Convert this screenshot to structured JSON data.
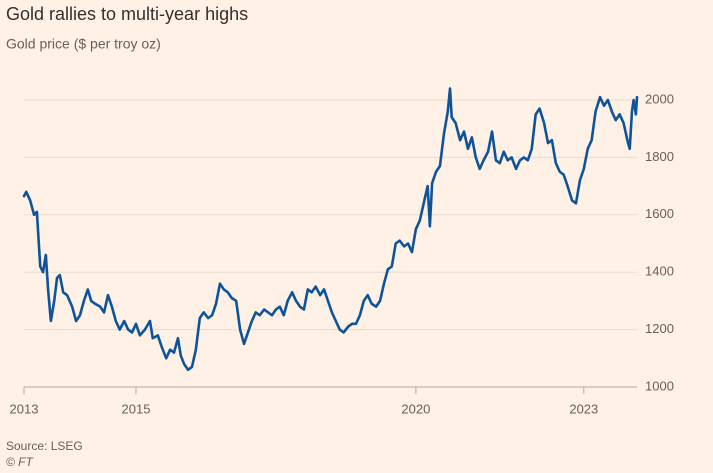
{
  "chart_data": {
    "type": "line",
    "title": "Gold rallies to multi-year highs",
    "subtitle": "Gold price ($ per troy oz)",
    "source": "Source: LSEG",
    "credit": "© FT",
    "x": [
      2013.0,
      2013.04,
      2013.11,
      2013.18,
      2013.23,
      2013.29,
      2013.34,
      2013.39,
      2013.43,
      2013.48,
      2013.54,
      2013.59,
      2013.64,
      2013.7,
      2013.77,
      2013.86,
      2013.93,
      2014.0,
      2014.07,
      2014.14,
      2014.2,
      2014.27,
      2014.36,
      2014.43,
      2014.5,
      2014.57,
      2014.64,
      2014.71,
      2014.79,
      2014.86,
      2014.93,
      2015.0,
      2015.07,
      2015.16,
      2015.25,
      2015.3,
      2015.39,
      2015.46,
      2015.54,
      2015.61,
      2015.68,
      2015.75,
      2015.8,
      2015.86,
      2015.93,
      2016.0,
      2016.07,
      2016.14,
      2016.21,
      2016.29,
      2016.36,
      2016.43,
      2016.5,
      2016.57,
      2016.64,
      2016.71,
      2016.79,
      2016.86,
      2016.93,
      2017.0,
      2017.07,
      2017.14,
      2017.21,
      2017.29,
      2017.36,
      2017.43,
      2017.5,
      2017.57,
      2017.64,
      2017.71,
      2017.79,
      2017.86,
      2017.93,
      2018.0,
      2018.07,
      2018.14,
      2018.21,
      2018.29,
      2018.36,
      2018.43,
      2018.5,
      2018.57,
      2018.64,
      2018.71,
      2018.79,
      2018.86,
      2018.93,
      2019.0,
      2019.07,
      2019.14,
      2019.21,
      2019.29,
      2019.36,
      2019.43,
      2019.5,
      2019.57,
      2019.64,
      2019.71,
      2019.79,
      2019.86,
      2019.93,
      2020.0,
      2020.07,
      2020.14,
      2020.21,
      2020.25,
      2020.29,
      2020.36,
      2020.43,
      2020.5,
      2020.57,
      2020.61,
      2020.64,
      2020.71,
      2020.79,
      2020.86,
      2020.93,
      2021.0,
      2021.07,
      2021.14,
      2021.21,
      2021.29,
      2021.36,
      2021.43,
      2021.5,
      2021.57,
      2021.64,
      2021.71,
      2021.79,
      2021.86,
      2021.93,
      2022.0,
      2022.07,
      2022.14,
      2022.21,
      2022.29,
      2022.36,
      2022.43,
      2022.5,
      2022.57,
      2022.64,
      2022.71,
      2022.79,
      2022.86,
      2022.93,
      2023.0,
      2023.07,
      2023.14,
      2023.21,
      2023.29,
      2023.36,
      2023.43,
      2023.5,
      2023.57,
      2023.64,
      2023.71,
      2023.79,
      2023.82,
      2023.86,
      2023.89,
      2023.93,
      2023.95
    ],
    "series": [
      {
        "name": "Gold price",
        "color": "#0f5499",
        "values": [
          1665,
          1680,
          1650,
          1600,
          1610,
          1420,
          1400,
          1460,
          1340,
          1230,
          1300,
          1380,
          1390,
          1330,
          1320,
          1280,
          1230,
          1250,
          1300,
          1340,
          1300,
          1290,
          1280,
          1260,
          1320,
          1280,
          1230,
          1200,
          1230,
          1200,
          1190,
          1220,
          1180,
          1200,
          1230,
          1170,
          1180,
          1140,
          1100,
          1130,
          1120,
          1170,
          1110,
          1080,
          1060,
          1070,
          1130,
          1240,
          1260,
          1240,
          1250,
          1290,
          1360,
          1340,
          1330,
          1310,
          1300,
          1200,
          1150,
          1190,
          1230,
          1260,
          1250,
          1270,
          1260,
          1250,
          1270,
          1280,
          1250,
          1300,
          1330,
          1300,
          1280,
          1270,
          1340,
          1330,
          1350,
          1320,
          1340,
          1300,
          1260,
          1230,
          1200,
          1190,
          1210,
          1220,
          1220,
          1250,
          1300,
          1320,
          1290,
          1280,
          1300,
          1360,
          1410,
          1420,
          1500,
          1510,
          1490,
          1500,
          1470,
          1550,
          1580,
          1640,
          1700,
          1560,
          1710,
          1750,
          1770,
          1880,
          1960,
          2040,
          1940,
          1920,
          1860,
          1890,
          1830,
          1870,
          1800,
          1760,
          1790,
          1820,
          1890,
          1790,
          1780,
          1820,
          1790,
          1800,
          1760,
          1790,
          1800,
          1790,
          1830,
          1950,
          1970,
          1920,
          1850,
          1860,
          1780,
          1750,
          1740,
          1700,
          1650,
          1640,
          1720,
          1760,
          1830,
          1860,
          1960,
          2010,
          1980,
          2000,
          1960,
          1930,
          1950,
          1920,
          1850,
          1830,
          1960,
          2000,
          1950,
          2010
        ]
      }
    ],
    "xlim": [
      2013,
      2023.95
    ],
    "xticks": [
      2013,
      2015,
      2020,
      2023
    ],
    "ylim": [
      1000,
      2000
    ],
    "yticks": [
      1000,
      1200,
      1400,
      1600,
      1800,
      2000
    ],
    "grid": true
  }
}
